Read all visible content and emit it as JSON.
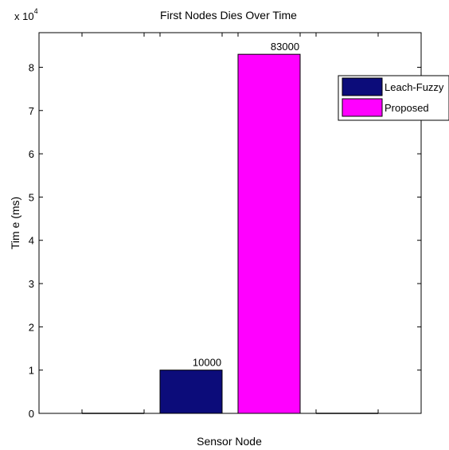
{
  "chart_data": {
    "type": "bar",
    "title": "First Nodes Dies Over Time",
    "xlabel": "Sensor Node",
    "ylabel": "Tim e (ms)",
    "y_multiplier": "x 10",
    "y_multiplier_exponent": "4",
    "ylim": [
      0,
      88000
    ],
    "yticks": [
      0,
      10000,
      20000,
      30000,
      40000,
      50000,
      60000,
      70000,
      80000
    ],
    "ytick_labels": [
      "0",
      "1",
      "2",
      "3",
      "4",
      "5",
      "6",
      "7",
      "8"
    ],
    "grid": false,
    "legend_position": "top-right",
    "series": [
      {
        "name": "Leach-Fuzzy",
        "value": 10000,
        "label": "10000",
        "color": "#0c0c7a"
      },
      {
        "name": "Proposed",
        "value": 83000,
        "label": "83000",
        "color": "#ff00ff"
      }
    ]
  }
}
